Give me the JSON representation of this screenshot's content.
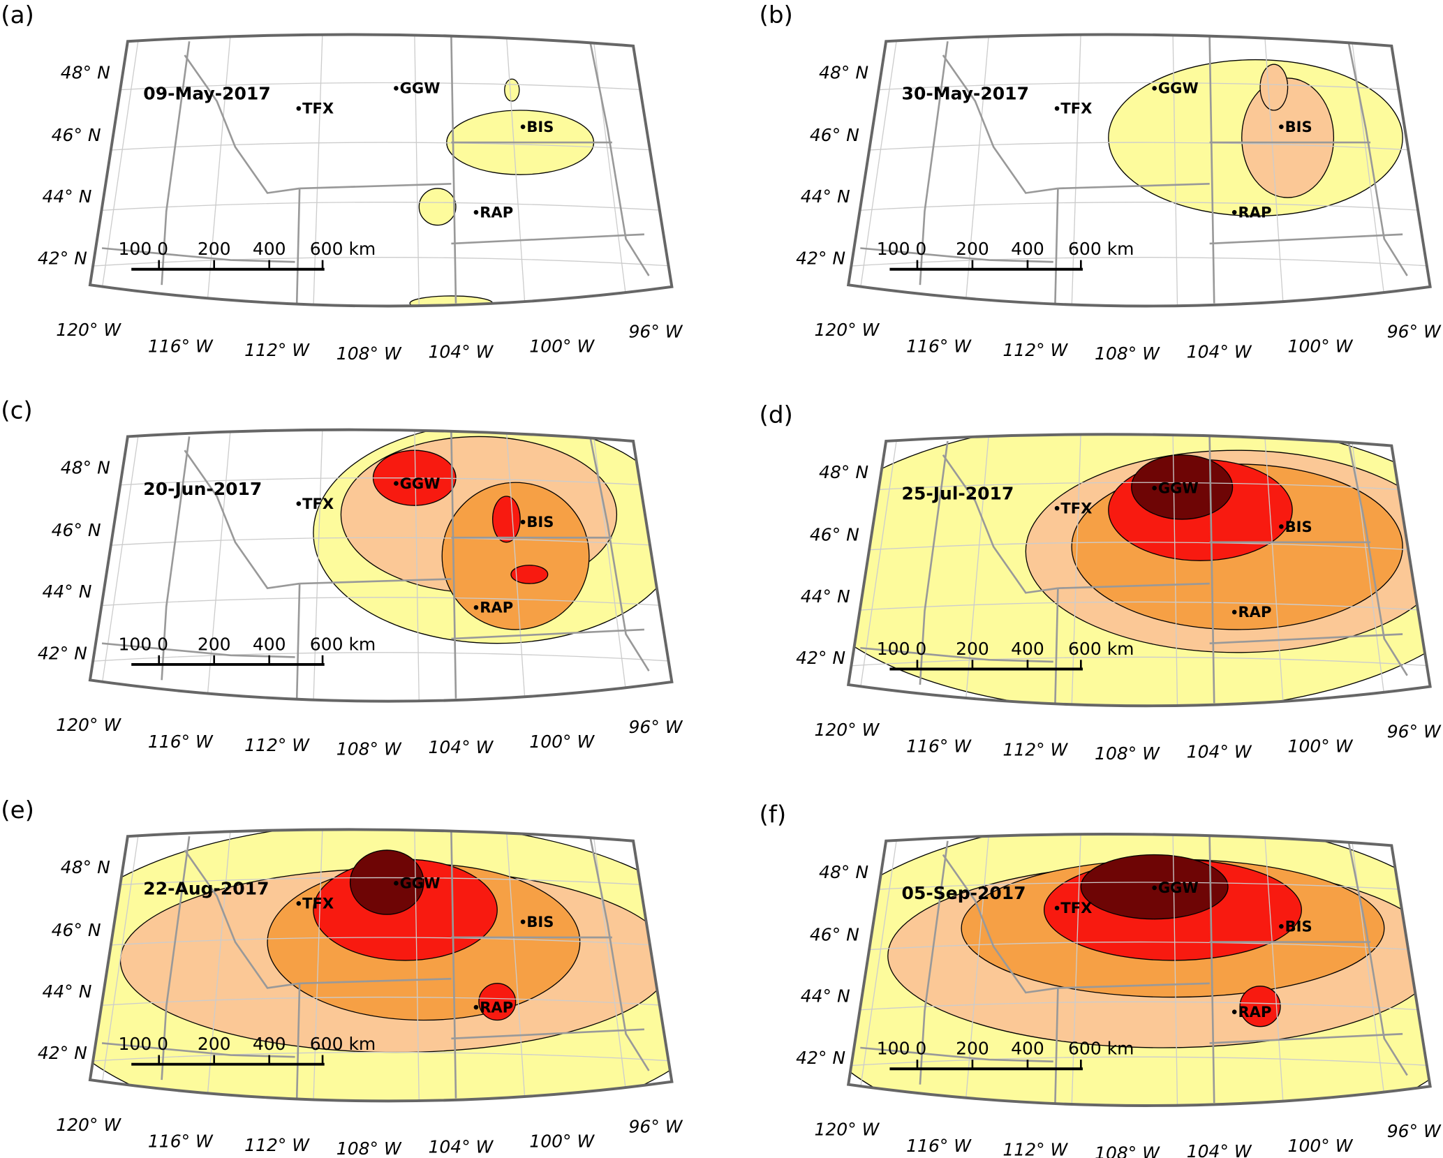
{
  "panels": [
    {
      "label": "(a)",
      "date": "09-May-2017"
    },
    {
      "label": "(b)",
      "date": "30-May-2017"
    },
    {
      "label": "(c)",
      "date": "20-Jun-2017"
    },
    {
      "label": "(d)",
      "date": "25-Jul-2017"
    },
    {
      "label": "(e)",
      "date": "22-Aug-2017"
    },
    {
      "label": "(f)",
      "date": "05-Sep-2017"
    }
  ],
  "stations": [
    "TFX",
    "GGW",
    "BIS",
    "RAP"
  ],
  "lat_labels": [
    "48° N",
    "46° N",
    "44° N",
    "42° N"
  ],
  "lon_labels": [
    "120° W",
    "116° W",
    "112° W",
    "108° W",
    "104° W",
    "100° W",
    "96° W"
  ],
  "scale_labels": [
    "100 0",
    "200",
    "400",
    "600 km"
  ]
}
